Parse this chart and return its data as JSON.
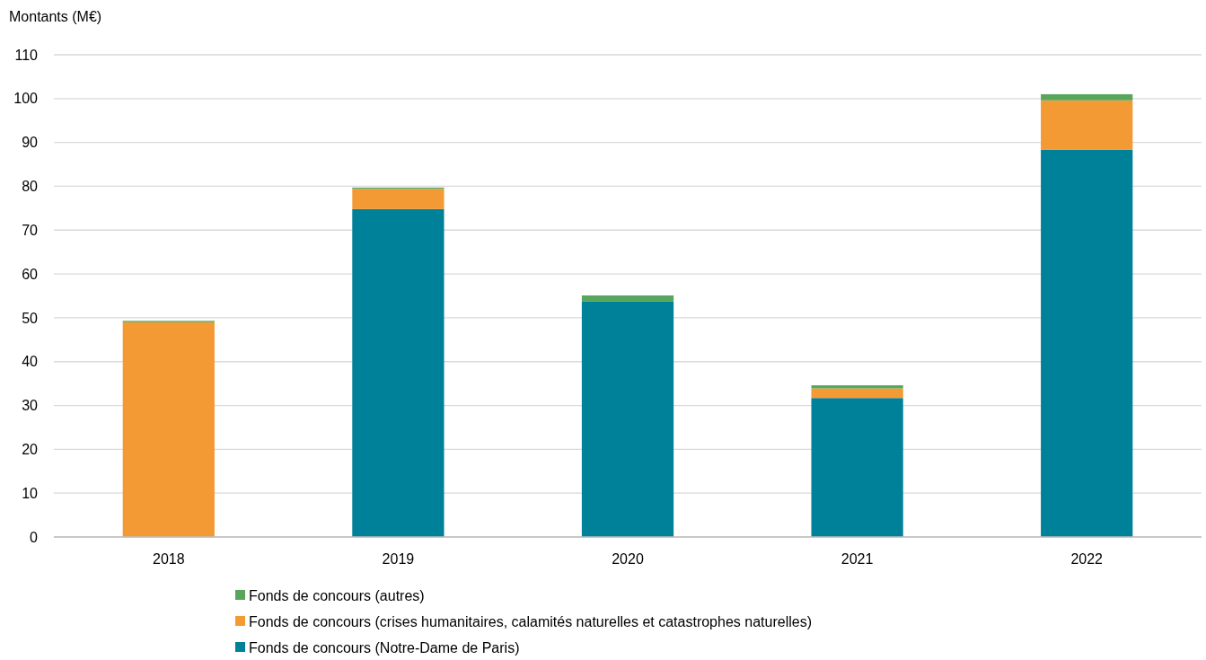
{
  "chart_data": {
    "type": "bar",
    "ylabel": "Montants (M€)",
    "categories": [
      "2018",
      "2019",
      "2020",
      "2021",
      "2022"
    ],
    "stacked": true,
    "series": [
      {
        "name": "Fonds de concours (Notre-Dame de Paris)",
        "color": "#00819a",
        "values": [
          0,
          74.8,
          53.7,
          31.7,
          88.3
        ]
      },
      {
        "name": "Fonds de concours (crises humanitaires, calamités naturelles et catastrophes naturelles)",
        "color": "#f39a34",
        "values": [
          49.0,
          4.6,
          0,
          2.2,
          11.3
        ]
      },
      {
        "name": "Fonds de concours (autres)",
        "color": "#58a65c",
        "values": [
          0.3,
          0.3,
          1.4,
          0.7,
          1.4
        ]
      }
    ],
    "ylim": [
      0,
      110
    ],
    "yticks": [
      0,
      10,
      20,
      30,
      40,
      50,
      60,
      70,
      80,
      90,
      100,
      110
    ],
    "grid": "y",
    "legend": "bottom"
  }
}
